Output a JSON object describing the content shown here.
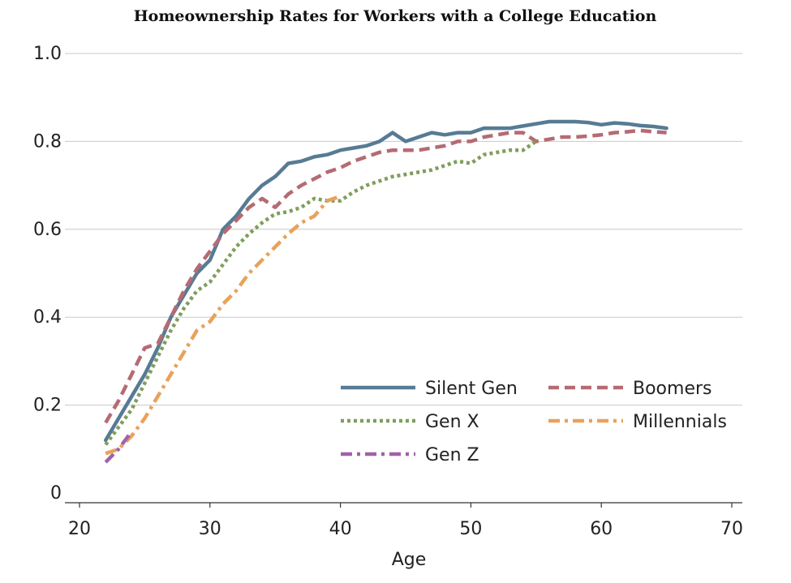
{
  "chart_data": {
    "type": "line",
    "title": "Homeownership Rates for Workers with a College Education",
    "xlabel": "Age",
    "ylabel": "",
    "xlim": [
      20,
      70
    ],
    "ylim": [
      0,
      1.0
    ],
    "x_ticks": [
      20,
      30,
      40,
      50,
      60,
      70
    ],
    "y_ticks": [
      0,
      0.2,
      0.4,
      0.6,
      0.8,
      1.0
    ],
    "y_tick_labels": [
      "0",
      "0.2",
      "0.4",
      "0.6",
      "0.8",
      "1.0"
    ],
    "grid": "horizontal",
    "legend_position": "bottom-right",
    "series": [
      {
        "name": "Silent Gen",
        "color": "#577b94",
        "style": "solid",
        "x": [
          22,
          23,
          24,
          25,
          26,
          27,
          28,
          29,
          30,
          31,
          32,
          33,
          34,
          35,
          36,
          37,
          38,
          39,
          40,
          41,
          42,
          43,
          44,
          45,
          46,
          47,
          48,
          49,
          50,
          51,
          52,
          53,
          54,
          55,
          56,
          57,
          58,
          59,
          60,
          61,
          62,
          63,
          64,
          65
        ],
        "y": [
          0.12,
          0.17,
          0.22,
          0.27,
          0.33,
          0.4,
          0.45,
          0.5,
          0.53,
          0.6,
          0.63,
          0.67,
          0.7,
          0.72,
          0.75,
          0.755,
          0.765,
          0.77,
          0.78,
          0.785,
          0.79,
          0.8,
          0.82,
          0.8,
          0.81,
          0.82,
          0.815,
          0.82,
          0.82,
          0.83,
          0.83,
          0.83,
          0.835,
          0.84,
          0.845,
          0.845,
          0.845,
          0.843,
          0.838,
          0.842,
          0.84,
          0.836,
          0.834,
          0.83
        ]
      },
      {
        "name": "Boomers",
        "color": "#b56b73",
        "style": "dashed",
        "x": [
          22,
          23,
          24,
          25,
          26,
          27,
          28,
          29,
          30,
          31,
          32,
          33,
          34,
          35,
          36,
          37,
          38,
          39,
          40,
          41,
          42,
          43,
          44,
          45,
          46,
          47,
          48,
          49,
          50,
          51,
          52,
          53,
          54,
          55,
          56,
          57,
          58,
          59,
          60,
          61,
          62,
          63,
          64,
          65
        ],
        "y": [
          0.16,
          0.21,
          0.27,
          0.33,
          0.34,
          0.4,
          0.46,
          0.51,
          0.55,
          0.59,
          0.62,
          0.65,
          0.67,
          0.65,
          0.68,
          0.7,
          0.715,
          0.73,
          0.74,
          0.755,
          0.765,
          0.775,
          0.78,
          0.78,
          0.78,
          0.785,
          0.79,
          0.8,
          0.8,
          0.81,
          0.815,
          0.82,
          0.82,
          0.8,
          0.805,
          0.81,
          0.81,
          0.812,
          0.815,
          0.82,
          0.822,
          0.825,
          0.822,
          0.82
        ]
      },
      {
        "name": "Gen X",
        "color": "#7f9e5c",
        "style": "dotted",
        "x": [
          22,
          23,
          24,
          25,
          26,
          27,
          28,
          29,
          30,
          31,
          32,
          33,
          34,
          35,
          36,
          37,
          38,
          39,
          40,
          41,
          42,
          43,
          44,
          45,
          46,
          47,
          48,
          49,
          50,
          51,
          52,
          53,
          54,
          55
        ],
        "y": [
          0.11,
          0.15,
          0.19,
          0.25,
          0.31,
          0.37,
          0.42,
          0.46,
          0.48,
          0.52,
          0.56,
          0.59,
          0.615,
          0.635,
          0.64,
          0.65,
          0.67,
          0.665,
          0.665,
          0.685,
          0.7,
          0.71,
          0.72,
          0.725,
          0.73,
          0.735,
          0.745,
          0.755,
          0.75,
          0.77,
          0.775,
          0.78,
          0.78,
          0.8
        ]
      },
      {
        "name": "Millennials",
        "color": "#e8a25c",
        "style": "dashdot",
        "x": [
          22,
          23,
          24,
          25,
          26,
          27,
          28,
          29,
          30,
          31,
          32,
          33,
          34,
          35,
          36,
          37,
          38,
          39,
          40
        ],
        "y": [
          0.09,
          0.1,
          0.13,
          0.17,
          0.22,
          0.27,
          0.32,
          0.37,
          0.39,
          0.43,
          0.46,
          0.5,
          0.53,
          0.56,
          0.59,
          0.615,
          0.63,
          0.665,
          0.675
        ]
      },
      {
        "name": "Gen Z",
        "color": "#a063a8",
        "style": "dashdot",
        "x": [
          22,
          23,
          24
        ],
        "y": [
          0.07,
          0.1,
          0.14
        ]
      }
    ]
  }
}
